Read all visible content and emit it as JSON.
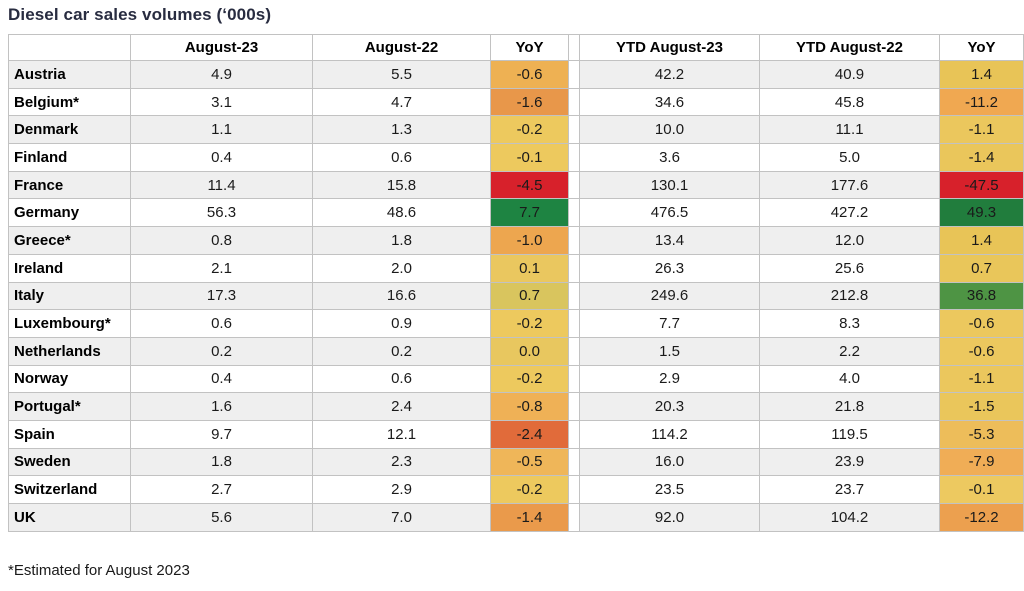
{
  "title": "Diesel car sales volumes (‘000s)",
  "footnote": "*Estimated for August 2023",
  "colors": {
    "title_text": "#282c40",
    "row_stripe": "#efefef",
    "grid_line": "#c2c2c2",
    "outer_border": "#9f9f9f",
    "scale_red": "#d7212b",
    "scale_green_dark": "#217d3d",
    "scale_green_mid": "#4e9444",
    "scale_gold": "#edc95e",
    "scale_amber": "#eeb153",
    "scale_orange": "#e8974a"
  },
  "chart_data": {
    "type": "table",
    "title": "Diesel car sales volumes (‘000s)",
    "columns": [
      "",
      "August-23",
      "August-22",
      "YoY",
      "YTD August-23",
      "YTD August-22",
      "YoY"
    ],
    "rows": [
      {
        "country": "Austria",
        "values": [
          "4.9",
          "5.5",
          "-0.6",
          "42.2",
          "40.9",
          "1.4"
        ],
        "yoy_colors": [
          "#eeb153",
          "#e8c457"
        ]
      },
      {
        "country": "Belgium*",
        "values": [
          "3.1",
          "4.7",
          "-1.6",
          "34.6",
          "45.8",
          "-11.2"
        ],
        "yoy_colors": [
          "#e8974a",
          "#f0a851"
        ]
      },
      {
        "country": "Denmark",
        "values": [
          "1.1",
          "1.3",
          "-0.2",
          "10.0",
          "11.1",
          "-1.1"
        ],
        "yoy_colors": [
          "#edc95e",
          "#ebc75d"
        ]
      },
      {
        "country": "Finland",
        "values": [
          "0.4",
          "0.6",
          "-0.1",
          "3.6",
          "5.0",
          "-1.4"
        ],
        "yoy_colors": [
          "#edc95e",
          "#eac65b"
        ]
      },
      {
        "country": "France",
        "values": [
          "11.4",
          "15.8",
          "-4.5",
          "130.1",
          "177.6",
          "-47.5"
        ],
        "yoy_colors": [
          "#d7212b",
          "#d7212b"
        ]
      },
      {
        "country": "Germany",
        "values": [
          "56.3",
          "48.6",
          "7.7",
          "476.5",
          "427.2",
          "49.3"
        ],
        "yoy_colors": [
          "#1e8442",
          "#217d3d"
        ]
      },
      {
        "country": "Greece*",
        "values": [
          "0.8",
          "1.8",
          "-1.0",
          "13.4",
          "12.0",
          "1.4"
        ],
        "yoy_colors": [
          "#eda64f",
          "#e8c457"
        ]
      },
      {
        "country": "Ireland",
        "values": [
          "2.1",
          "2.0",
          "0.1",
          "26.3",
          "25.6",
          "0.7"
        ],
        "yoy_colors": [
          "#eac75f",
          "#e9c65a"
        ]
      },
      {
        "country": "Italy",
        "values": [
          "17.3",
          "16.6",
          "0.7",
          "249.6",
          "212.8",
          "36.8"
        ],
        "yoy_colors": [
          "#d9c55e",
          "#4e9444"
        ]
      },
      {
        "country": "Luxembourg*",
        "values": [
          "0.6",
          "0.9",
          "-0.2",
          "7.7",
          "8.3",
          "-0.6"
        ],
        "yoy_colors": [
          "#edc95e",
          "#ecc85e"
        ]
      },
      {
        "country": "Netherlands",
        "values": [
          "0.2",
          "0.2",
          "0.0",
          "1.5",
          "2.2",
          "-0.6"
        ],
        "yoy_colors": [
          "#e8c75f",
          "#ecc85e"
        ]
      },
      {
        "country": "Norway",
        "values": [
          "0.4",
          "0.6",
          "-0.2",
          "2.9",
          "4.0",
          "-1.1"
        ],
        "yoy_colors": [
          "#edc95e",
          "#ebc75d"
        ]
      },
      {
        "country": "Portugal*",
        "values": [
          "1.6",
          "2.4",
          "-0.8",
          "20.3",
          "21.8",
          "-1.5"
        ],
        "yoy_colors": [
          "#efb156",
          "#eac65b"
        ]
      },
      {
        "country": "Spain",
        "values": [
          "9.7",
          "12.1",
          "-2.4",
          "114.2",
          "119.5",
          "-5.3"
        ],
        "yoy_colors": [
          "#e16b3a",
          "#edbd5a"
        ]
      },
      {
        "country": "Sweden",
        "values": [
          "1.8",
          "2.3",
          "-0.5",
          "16.0",
          "23.9",
          "-7.9"
        ],
        "yoy_colors": [
          "#efb659",
          "#f0ad56"
        ]
      },
      {
        "country": "Switzerland",
        "values": [
          "2.7",
          "2.9",
          "-0.2",
          "23.5",
          "23.7",
          "-0.1"
        ],
        "yoy_colors": [
          "#edc95e",
          "#edc960"
        ]
      },
      {
        "country": "UK",
        "values": [
          "5.6",
          "7.0",
          "-1.4",
          "92.0",
          "104.2",
          "-12.2"
        ],
        "yoy_colors": [
          "#ea9a4b",
          "#eca04f"
        ]
      }
    ]
  }
}
